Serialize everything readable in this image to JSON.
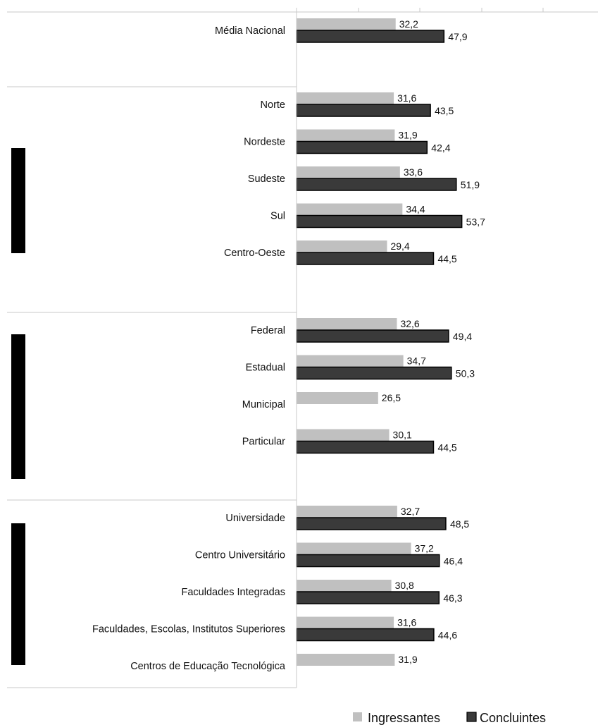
{
  "chart_data": {
    "type": "bar",
    "orientation": "horizontal",
    "xlim": [
      0,
      100
    ],
    "grid": false,
    "legend_position": "bottom-right",
    "colors": {
      "Ingressantes": "#c0c0c0",
      "Concluintes": "#3a3a3a",
      "bar_edge": "#000000",
      "divider": "#c8c8c8",
      "group_marker": "#000000"
    },
    "series": [
      {
        "name": "Ingressantes"
      },
      {
        "name": "Concluintes"
      }
    ],
    "groups": [
      {
        "categories": [
          {
            "label": "Média Nacional",
            "values": [
              32.2,
              47.9
            ],
            "value_labels": [
              "32,2",
              "47,9"
            ]
          }
        ]
      },
      {
        "categories": [
          {
            "label": "Norte",
            "values": [
              31.6,
              43.5
            ],
            "value_labels": [
              "31,6",
              "43,5"
            ]
          },
          {
            "label": "Nordeste",
            "values": [
              31.9,
              42.4
            ],
            "value_labels": [
              "31,9",
              "42,4"
            ]
          },
          {
            "label": "Sudeste",
            "values": [
              33.6,
              51.9
            ],
            "value_labels": [
              "33,6",
              "51,9"
            ]
          },
          {
            "label": "Sul",
            "values": [
              34.4,
              53.7
            ],
            "value_labels": [
              "34,4",
              "53,7"
            ]
          },
          {
            "label": "Centro-Oeste",
            "values": [
              29.4,
              44.5
            ],
            "value_labels": [
              "29,4",
              "44,5"
            ]
          }
        ]
      },
      {
        "categories": [
          {
            "label": "Federal",
            "values": [
              32.6,
              49.4
            ],
            "value_labels": [
              "32,6",
              "49,4"
            ]
          },
          {
            "label": "Estadual",
            "values": [
              34.7,
              50.3
            ],
            "value_labels": [
              "34,7",
              "50,3"
            ]
          },
          {
            "label": "Municipal",
            "values": [
              26.5,
              null
            ],
            "value_labels": [
              "26,5",
              ""
            ]
          },
          {
            "label": "Particular",
            "values": [
              30.1,
              44.5
            ],
            "value_labels": [
              "30,1",
              "44,5"
            ]
          }
        ]
      },
      {
        "categories": [
          {
            "label": "Universidade",
            "values": [
              32.7,
              48.5
            ],
            "value_labels": [
              "32,7",
              "48,5"
            ]
          },
          {
            "label": "Centro Universitário",
            "values": [
              37.2,
              46.4
            ],
            "value_labels": [
              "37,2",
              "46,4"
            ]
          },
          {
            "label": "Faculdades Integradas",
            "values": [
              30.8,
              46.3
            ],
            "value_labels": [
              "30,8",
              "46,3"
            ]
          },
          {
            "label": "Faculdades, Escolas, Institutos Superiores",
            "values": [
              31.6,
              44.6
            ],
            "value_labels": [
              "31,6",
              "44,6"
            ]
          },
          {
            "label": "Centros de Educação Tecnológica",
            "values": [
              31.9,
              null
            ],
            "value_labels": [
              "31,9",
              ""
            ]
          }
        ]
      }
    ]
  }
}
